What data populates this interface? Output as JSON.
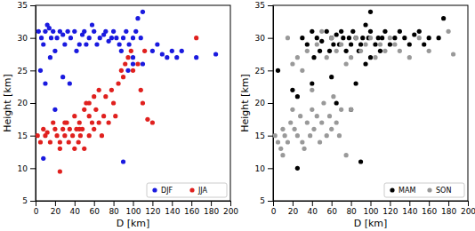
{
  "chart_data": [
    {
      "type": "scatter",
      "x_label": "D [km]",
      "y_label": "Height [km]",
      "xlim": [
        0,
        200
      ],
      "ylim": [
        5,
        35
      ],
      "xticks": [
        0,
        20,
        40,
        60,
        80,
        100,
        120,
        140,
        160,
        180,
        200
      ],
      "yticks": [
        5,
        10,
        15,
        20,
        25,
        30,
        35
      ],
      "legend": "lower right",
      "series": [
        {
          "name": "DJF",
          "color": "#1a1adf",
          "marker": "circle",
          "x": [
            3,
            6,
            8,
            10,
            12,
            14,
            16,
            18,
            20,
            22,
            25,
            28,
            30,
            33,
            36,
            40,
            42,
            45,
            48,
            50,
            52,
            55,
            58,
            60,
            63,
            66,
            70,
            72,
            75,
            78,
            80,
            83,
            86,
            88,
            90,
            93,
            96,
            100,
            103,
            105,
            108,
            110,
            5,
            10,
            15,
            20,
            28,
            35,
            8,
            90,
            95,
            100,
            110,
            100,
            120,
            125,
            130,
            135,
            140,
            145,
            150,
            165,
            185
          ],
          "values": [
            31,
            30,
            29,
            31,
            32,
            31.5,
            30,
            31,
            28,
            30,
            31,
            30.5,
            29,
            31,
            30,
            31,
            28,
            29,
            30.5,
            31,
            29,
            30,
            32,
            31,
            29,
            30,
            30.5,
            31,
            29.5,
            30,
            31,
            30,
            29,
            28,
            30,
            31,
            29,
            30,
            31,
            33,
            30,
            34,
            25,
            23,
            27,
            19,
            24,
            23,
            11.5,
            11,
            25,
            26,
            26,
            27,
            28,
            29,
            27.5,
            27,
            28,
            27,
            28,
            27,
            27.5
          ]
        },
        {
          "name": "JJA",
          "color": "#e0201e",
          "marker": "circle",
          "x": [
            2,
            5,
            8,
            10,
            12,
            15,
            18,
            20,
            22,
            25,
            25,
            28,
            30,
            32,
            34,
            35,
            38,
            40,
            40,
            42,
            44,
            45,
            46,
            48,
            50,
            50,
            52,
            55,
            55,
            58,
            60,
            60,
            62,
            65,
            65,
            68,
            70,
            72,
            75,
            78,
            80,
            82,
            85,
            88,
            90,
            92,
            95,
            98,
            100,
            105,
            108,
            110,
            112,
            115,
            120,
            25,
            30,
            45,
            55,
            165
          ],
          "values": [
            15,
            14,
            16,
            15,
            15.5,
            14,
            17,
            16,
            15,
            14,
            9.5,
            16,
            15,
            17,
            14,
            16,
            15,
            13,
            18,
            16,
            14,
            17,
            15,
            16,
            19,
            13,
            20,
            15,
            18,
            17,
            16,
            21,
            19,
            17,
            22,
            15,
            18,
            21,
            17,
            22,
            20,
            18,
            23,
            25,
            24,
            26,
            27,
            28,
            25,
            26,
            22,
            20,
            28,
            17.5,
            17,
            13,
            17,
            16,
            20,
            30
          ]
        }
      ]
    },
    {
      "type": "scatter",
      "x_label": "D [km]",
      "y_label": "Height [km]",
      "xlim": [
        0,
        200
      ],
      "ylim": [
        5,
        35
      ],
      "xticks": [
        0,
        20,
        40,
        60,
        80,
        100,
        120,
        140,
        160,
        180,
        200
      ],
      "yticks": [
        5,
        10,
        15,
        20,
        25,
        30,
        35
      ],
      "legend": "lower right",
      "series": [
        {
          "name": "MAM",
          "color": "#000000",
          "marker": "circle",
          "x": [
            5,
            20,
            25,
            30,
            35,
            40,
            42,
            45,
            48,
            50,
            55,
            58,
            60,
            62,
            65,
            68,
            70,
            72,
            75,
            78,
            80,
            82,
            85,
            88,
            90,
            92,
            95,
            98,
            100,
            100,
            105,
            108,
            110,
            112,
            115,
            120,
            125,
            130,
            135,
            140,
            145,
            150,
            155,
            160,
            170,
            175,
            60,
            65,
            80,
            85,
            90,
            25,
            40,
            95,
            100
          ],
          "values": [
            25,
            22,
            10,
            30,
            29,
            31,
            27,
            30,
            28,
            29.5,
            31,
            28,
            30,
            29,
            30.5,
            29,
            31,
            30,
            28,
            30,
            29,
            31,
            30,
            28,
            29,
            30,
            32,
            30,
            31,
            34,
            29,
            30,
            28,
            30,
            31,
            29,
            30,
            31,
            30,
            29,
            30.5,
            31,
            29,
            30,
            30,
            33,
            24,
            20,
            19,
            23,
            11,
            21,
            23,
            26,
            27
          ]
        },
        {
          "name": "SON",
          "color": "#999999",
          "marker": "circle",
          "x": [
            2,
            5,
            8,
            10,
            12,
            15,
            18,
            20,
            22,
            25,
            28,
            30,
            32,
            35,
            38,
            40,
            42,
            45,
            48,
            50,
            52,
            55,
            58,
            60,
            62,
            65,
            68,
            70,
            75,
            80,
            15,
            20,
            25,
            30,
            35,
            45,
            50,
            55,
            60,
            65,
            70,
            75,
            80,
            85,
            90,
            95,
            100,
            105,
            110,
            115,
            120,
            125,
            130,
            140,
            150,
            160,
            180,
            185,
            40,
            10
          ],
          "values": [
            15,
            14,
            13,
            16,
            15,
            14,
            17,
            19,
            16,
            15,
            18,
            14,
            13,
            17,
            15,
            19,
            16,
            18,
            14,
            17,
            20,
            15,
            18,
            16,
            21,
            17,
            15,
            19,
            12,
            19,
            30,
            26,
            27,
            25,
            28,
            29,
            31,
            27,
            30,
            28,
            29,
            26,
            27,
            30,
            28,
            29,
            30,
            27,
            29,
            28,
            30,
            29,
            28,
            27,
            30,
            28,
            31,
            27.5,
            22,
            12
          ]
        }
      ]
    }
  ]
}
